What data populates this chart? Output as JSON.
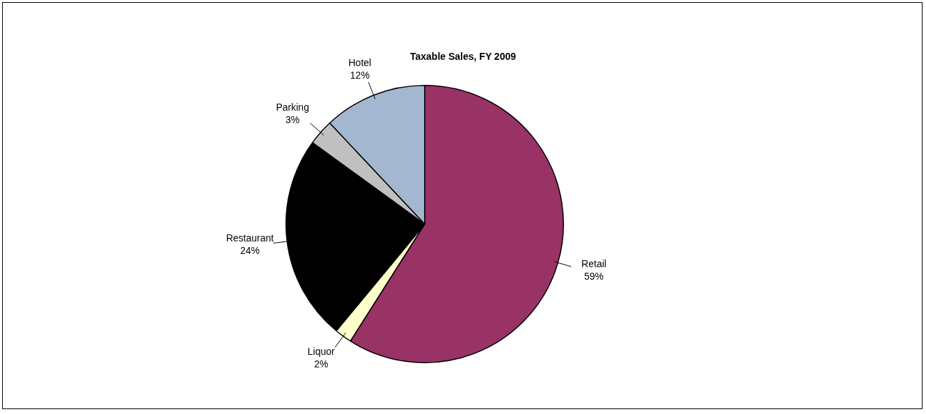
{
  "chart_data": {
    "type": "pie",
    "title": "Taxable Sales, FY 2009",
    "categories": [
      "Retail",
      "Liquor",
      "Restaurant",
      "Parking",
      "Hotel"
    ],
    "values": [
      59,
      2,
      24,
      3,
      12
    ],
    "colors": [
      "#993366",
      "#ffffcc",
      "#000000",
      "#c0c0c0",
      "#a3b8d0"
    ],
    "value_labels": [
      "59%",
      "2%",
      "24%",
      "3%",
      "12%"
    ],
    "legend": false
  }
}
